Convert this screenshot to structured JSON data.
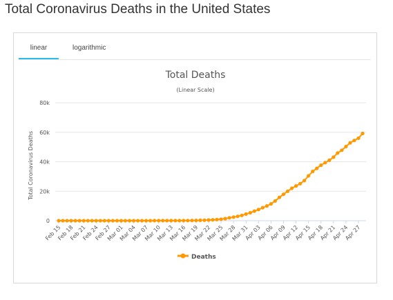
{
  "page_title": "Total Coronavirus Deaths in the United States",
  "tabs": [
    {
      "label": "linear",
      "active": true
    },
    {
      "label": "logarithmic",
      "active": false
    }
  ],
  "colors": {
    "series": "#ff9900",
    "tab_active": "#2bbbe4",
    "grid": "#e6e6e6"
  },
  "chart_data": {
    "type": "line",
    "title": "Total Deaths",
    "subtitle": "(Linear Scale)",
    "ylabel": "Total Coronavirus Deaths",
    "xlabel": "",
    "ylim": [
      0,
      80000
    ],
    "yticks": [
      0,
      20000,
      40000,
      60000,
      80000
    ],
    "ytick_labels": [
      "0",
      "20k",
      "40k",
      "60k",
      "80k"
    ],
    "xtick_labels": [
      "Feb 15",
      "Feb 18",
      "Feb 21",
      "Feb 24",
      "Feb 27",
      "Mar 01",
      "Mar 04",
      "Mar 07",
      "Mar 10",
      "Mar 13",
      "Mar 16",
      "Mar 19",
      "Mar 22",
      "Mar 25",
      "Mar 28",
      "Mar 31",
      "Apr 03",
      "Apr 06",
      "Apr 09",
      "Apr 12",
      "Apr 15",
      "Apr 18",
      "Apr 21",
      "Apr 24",
      "Apr 27"
    ],
    "grid": true,
    "legend_position": "bottom",
    "series": [
      {
        "name": "Deaths",
        "x": [
          "Feb 15",
          "Feb 16",
          "Feb 17",
          "Feb 18",
          "Feb 19",
          "Feb 20",
          "Feb 21",
          "Feb 22",
          "Feb 23",
          "Feb 24",
          "Feb 25",
          "Feb 26",
          "Feb 27",
          "Feb 28",
          "Feb 29",
          "Mar 01",
          "Mar 02",
          "Mar 03",
          "Mar 04",
          "Mar 05",
          "Mar 06",
          "Mar 07",
          "Mar 08",
          "Mar 09",
          "Mar 10",
          "Mar 11",
          "Mar 12",
          "Mar 13",
          "Mar 14",
          "Mar 15",
          "Mar 16",
          "Mar 17",
          "Mar 18",
          "Mar 19",
          "Mar 20",
          "Mar 21",
          "Mar 22",
          "Mar 23",
          "Mar 24",
          "Mar 25",
          "Mar 26",
          "Mar 27",
          "Mar 28",
          "Mar 29",
          "Mar 30",
          "Mar 31",
          "Apr 01",
          "Apr 02",
          "Apr 03",
          "Apr 04",
          "Apr 05",
          "Apr 06",
          "Apr 07",
          "Apr 08",
          "Apr 09",
          "Apr 10",
          "Apr 11",
          "Apr 12",
          "Apr 13",
          "Apr 14",
          "Apr 15",
          "Apr 16",
          "Apr 17",
          "Apr 18",
          "Apr 19",
          "Apr 20",
          "Apr 21",
          "Apr 22",
          "Apr 23",
          "Apr 24",
          "Apr 25",
          "Apr 26",
          "Apr 27",
          "Apr 28"
        ],
        "values": [
          0,
          0,
          0,
          0,
          0,
          0,
          0,
          0,
          0,
          0,
          0,
          0,
          0,
          0,
          1,
          1,
          6,
          9,
          11,
          12,
          15,
          19,
          22,
          26,
          31,
          38,
          41,
          49,
          57,
          69,
          87,
          110,
          150,
          205,
          260,
          340,
          470,
          590,
          780,
          1050,
          1400,
          1950,
          2450,
          2950,
          3600,
          4500,
          5400,
          6500,
          7600,
          8800,
          10000,
          11400,
          13400,
          15800,
          17900,
          20000,
          22000,
          23600,
          25100,
          27200,
          30400,
          33400,
          35500,
          37600,
          39400,
          41000,
          43100,
          45900,
          47800,
          50300,
          52800,
          54400,
          56000,
          59200
        ]
      }
    ]
  }
}
